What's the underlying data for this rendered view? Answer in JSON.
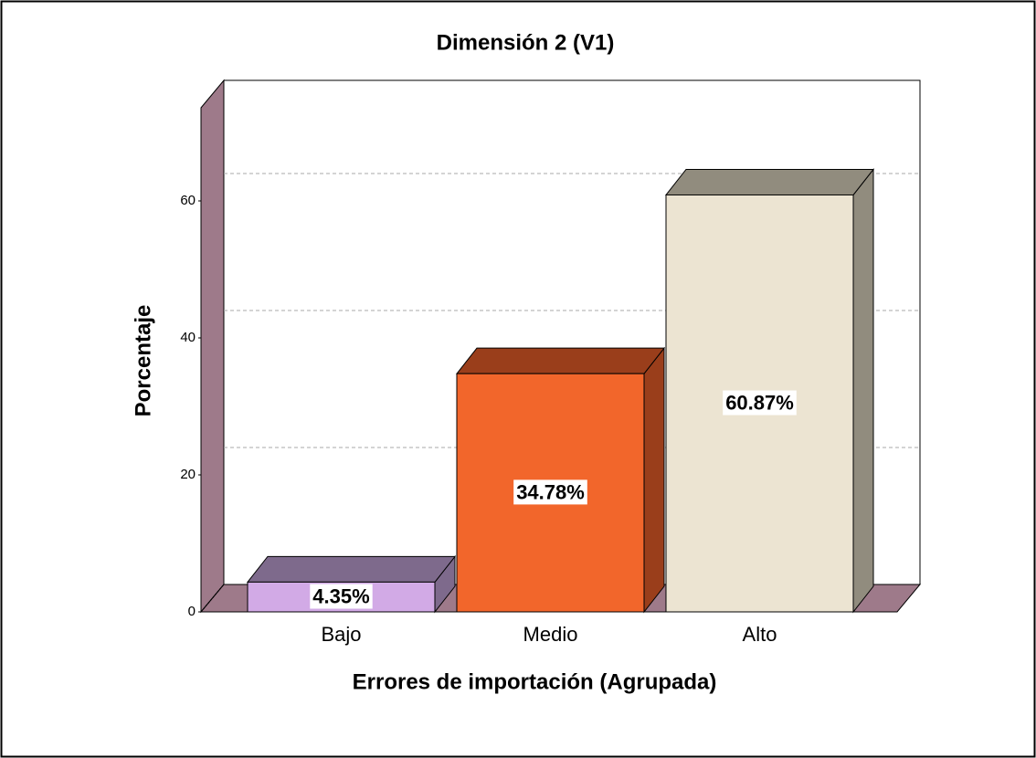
{
  "chart_data": {
    "type": "bar3d",
    "title": "Dimensión 2 (V1)",
    "x_label": "Errores de importación (Agrupada)",
    "y_label": "Porcentaje",
    "categories": [
      "Bajo",
      "Medio",
      "Alto"
    ],
    "values": [
      4.35,
      34.78,
      60.87
    ],
    "value_labels": [
      "4.35%",
      "34.78%",
      "60.87%"
    ],
    "colors": [
      "#d2aae6",
      "#f2662b",
      "#ece4d2"
    ],
    "shade_colors": [
      "#7e6a8c",
      "#9a3e1b",
      "#918c7e"
    ],
    "ylim": [
      0,
      73.6
    ],
    "yticks": [
      0,
      20,
      40,
      60
    ],
    "grid": true
  }
}
